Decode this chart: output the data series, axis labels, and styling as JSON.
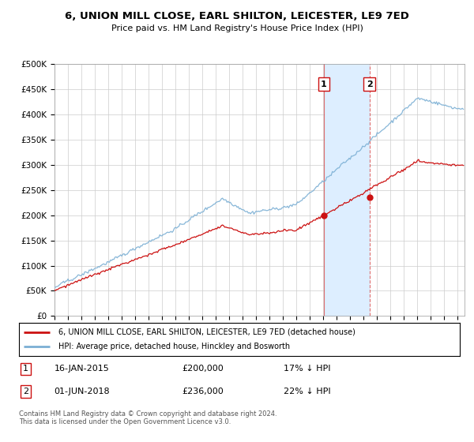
{
  "title": "6, UNION MILL CLOSE, EARL SHILTON, LEICESTER, LE9 7ED",
  "subtitle": "Price paid vs. HM Land Registry's House Price Index (HPI)",
  "ylabel_ticks": [
    "£0",
    "£50K",
    "£100K",
    "£150K",
    "£200K",
    "£250K",
    "£300K",
    "£350K",
    "£400K",
    "£450K",
    "£500K"
  ],
  "ylim": [
    0,
    500000
  ],
  "xlim_start": 1995.0,
  "xlim_end": 2025.5,
  "sale1_date": 2015.04,
  "sale1_price": 200000,
  "sale1_label": "16-JAN-2015",
  "sale1_pct": "17% ↓ HPI",
  "sale2_date": 2018.42,
  "sale2_price": 236000,
  "sale2_label": "01-JUN-2018",
  "sale2_pct": "22% ↓ HPI",
  "hpi_color": "#7bafd4",
  "price_color": "#cc1111",
  "shade_color": "#ddeeff",
  "legend_line1": "6, UNION MILL CLOSE, EARL SHILTON, LEICESTER, LE9 7ED (detached house)",
  "legend_line2": "HPI: Average price, detached house, Hinckley and Bosworth",
  "footer": "Contains HM Land Registry data © Crown copyright and database right 2024.\nThis data is licensed under the Open Government Licence v3.0.",
  "background_color": "#ffffff",
  "grid_color": "#cccccc"
}
